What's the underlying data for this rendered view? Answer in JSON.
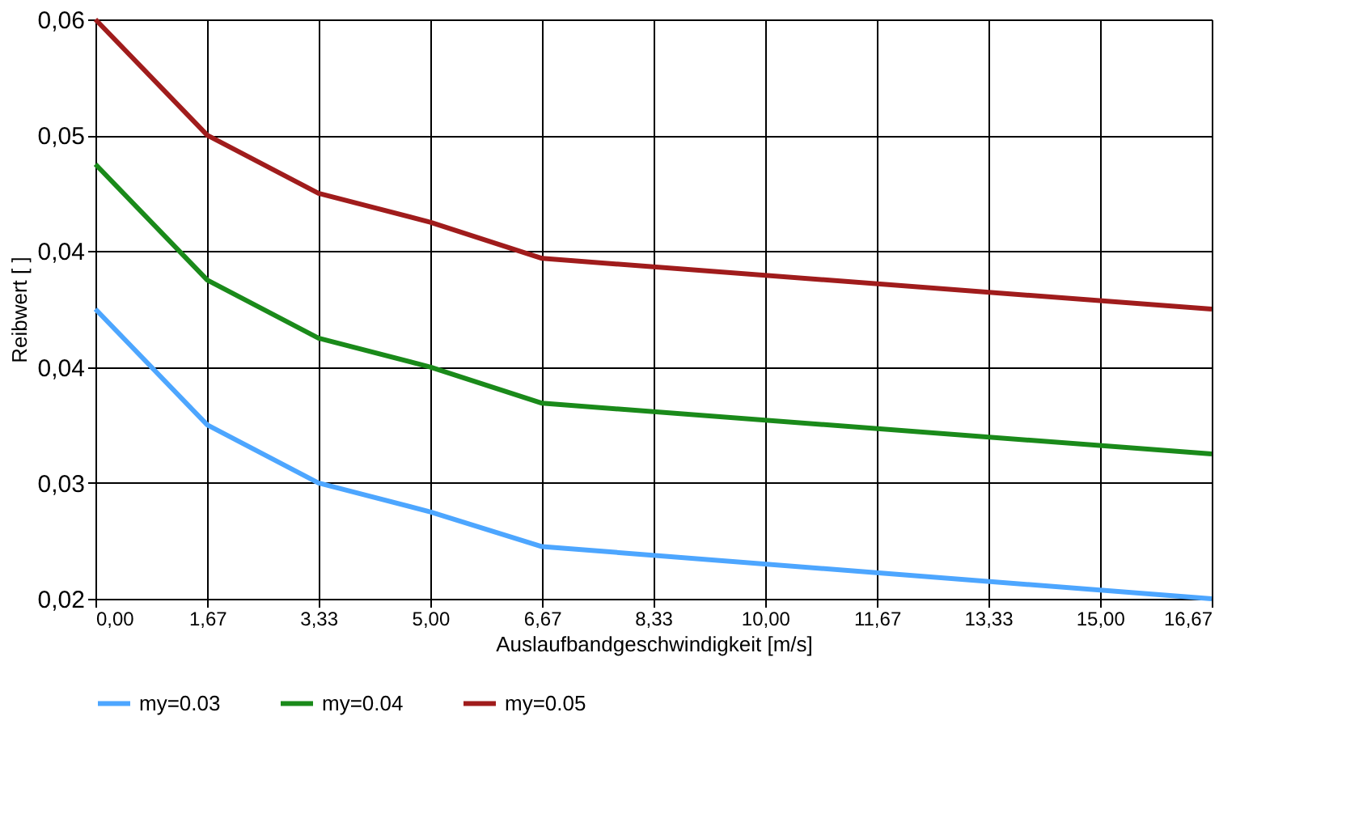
{
  "chart_data": {
    "type": "line",
    "xlabel": "Auslaufbandgeschwindigkeit [m/s]",
    "ylabel": "Reibwert [ ]",
    "x": [
      0,
      1.67,
      3.33,
      5,
      6.67,
      16.67
    ],
    "series": [
      {
        "name": "my=0.03",
        "color": "#4da6ff",
        "values": [
          0.04,
          0.032,
          0.028,
          0.026,
          0.0236,
          0.02
        ]
      },
      {
        "name": "my=0.04",
        "color": "#1a8a1a",
        "values": [
          0.05,
          0.042,
          0.038,
          0.036,
          0.0335,
          0.03
        ]
      },
      {
        "name": "my=0.05",
        "color": "#a01c1c",
        "values": [
          0.06,
          0.052,
          0.048,
          0.046,
          0.0435,
          0.04
        ]
      }
    ],
    "xlim": [
      0,
      16.67
    ],
    "xticks": [
      {
        "value": 0,
        "label": "0,00"
      },
      {
        "value": 1.67,
        "label": "1,67"
      },
      {
        "value": 3.33,
        "label": "3,33"
      },
      {
        "value": 5,
        "label": "5,00"
      },
      {
        "value": 6.67,
        "label": "6,67"
      },
      {
        "value": 8.33,
        "label": "8,33"
      },
      {
        "value": 10,
        "label": "10,00"
      },
      {
        "value": 11.67,
        "label": "11,67"
      },
      {
        "value": 13.33,
        "label": "13,33"
      },
      {
        "value": 15,
        "label": "15,00"
      },
      {
        "value": 16.67,
        "label": "16,67"
      }
    ],
    "ylim": [
      0.02,
      0.06
    ],
    "yticks": [
      {
        "value": 0.02,
        "label": "0,02"
      },
      {
        "value": 0.028,
        "label": "0,03"
      },
      {
        "value": 0.036,
        "label": "0,04"
      },
      {
        "value": 0.044,
        "label": "0,04"
      },
      {
        "value": 0.052,
        "label": "0,05"
      },
      {
        "value": 0.06,
        "label": "0,06"
      }
    ],
    "grid": true,
    "legend": "bottom",
    "marker": "none",
    "line_style": "solid"
  }
}
